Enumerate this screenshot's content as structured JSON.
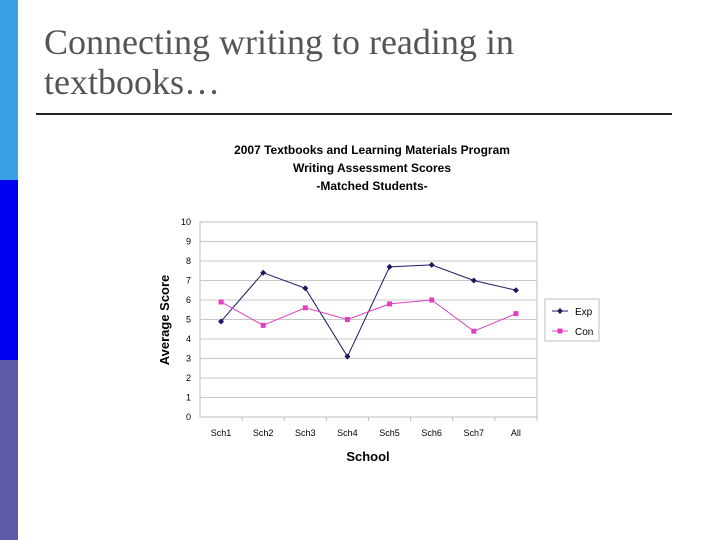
{
  "slide": {
    "title": "Connecting writing to reading in textbooks…"
  },
  "chart_data": {
    "type": "line",
    "title": [
      "2007 Textbooks and Learning Materials Program",
      "Writing Assessment Scores",
      "-Matched Students-"
    ],
    "xlabel": "School",
    "ylabel": "Average Score",
    "categories": [
      "Sch1",
      "Sch2",
      "Sch3",
      "Sch4",
      "Sch5",
      "Sch6",
      "Sch7",
      "All"
    ],
    "ylim": [
      0,
      10
    ],
    "yticks": [
      0,
      1,
      2,
      3,
      4,
      5,
      6,
      7,
      8,
      9,
      10
    ],
    "grid": true,
    "legend_position": "right",
    "series": [
      {
        "name": "Exp",
        "values": [
          4.9,
          7.4,
          6.6,
          3.1,
          7.7,
          7.8,
          7.0,
          6.5
        ],
        "color": "#1a1a60",
        "marker": "diamond"
      },
      {
        "name": "Con",
        "values": [
          5.9,
          4.7,
          5.6,
          5.0,
          5.8,
          6.0,
          4.4,
          5.3
        ],
        "color": "#e040c0",
        "marker": "square"
      }
    ]
  }
}
